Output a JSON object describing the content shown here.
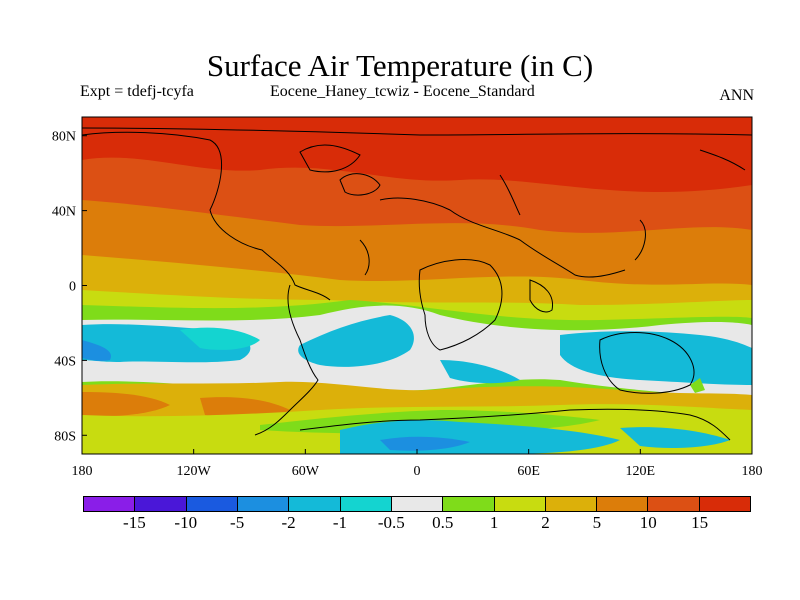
{
  "title": "Surface Air Temperature (in C)",
  "subtitle_left": "Expt = tdefj-tcyfa",
  "subtitle_center": "Eocene_Haney_tcwiz - Eocene_Standard",
  "subtitle_right": "ANN",
  "map": {
    "lat_ticks": [
      {
        "value": 80,
        "label": "80N"
      },
      {
        "value": 40,
        "label": "40N"
      },
      {
        "value": 0,
        "label": "0"
      },
      {
        "value": -40,
        "label": "40S"
      },
      {
        "value": -80,
        "label": "80S"
      }
    ],
    "lon_ticks": [
      {
        "value": -180,
        "label": "180"
      },
      {
        "value": -120,
        "label": "120W"
      },
      {
        "value": -60,
        "label": "60W"
      },
      {
        "value": 0,
        "label": "0"
      },
      {
        "value": 60,
        "label": "60E"
      },
      {
        "value": 120,
        "label": "120E"
      },
      {
        "value": 180,
        "label": "180"
      }
    ],
    "lat_range": [
      -90,
      90
    ],
    "lon_range": [
      -180,
      180
    ],
    "outline_color": "#000000"
  },
  "colorbar": {
    "colors": [
      "#8a1ee8",
      "#4a17d8",
      "#1a5ae0",
      "#1c8fe0",
      "#14bad8",
      "#14d4d0",
      "#e8e8e8",
      "#7fdc1a",
      "#c8dc10",
      "#dcb00a",
      "#dc7d0a",
      "#dc5014",
      "#d82c08"
    ],
    "labels": [
      "-15",
      "-10",
      "-5",
      "-2",
      "-1",
      "-0.5",
      "0.5",
      "1",
      "2",
      "5",
      "10",
      "15"
    ]
  }
}
